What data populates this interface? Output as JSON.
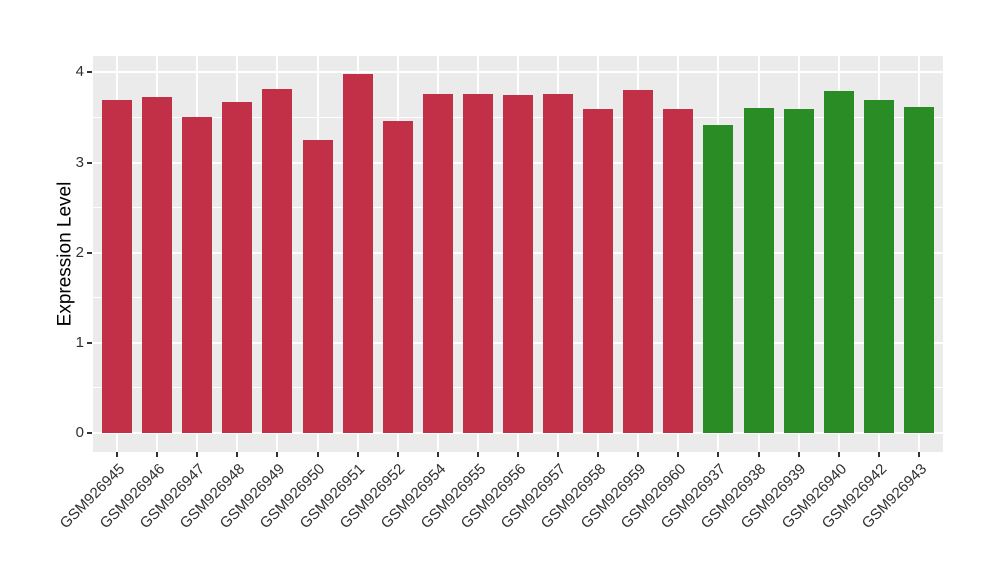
{
  "style": {
    "background": "#FFFFFF",
    "panel_background": "#EBEBEB",
    "gridline_color": "#FFFFFF",
    "tick_color": "#333333",
    "axis_text_color": "#303030",
    "axis_title_color": "#000000"
  },
  "chart_data": {
    "type": "bar",
    "title": "",
    "xlabel": "",
    "ylabel": "Expression Level",
    "ylim": [
      0,
      4
    ],
    "panel_range": [
      -0.211,
      4.183
    ],
    "yticks": [
      0,
      1,
      2,
      3,
      4
    ],
    "grid": {
      "horizontal_major": true,
      "horizontal_minor": true,
      "vertical_major": true
    },
    "legend_position": "none",
    "group_colors": {
      "red": "#C23048",
      "green": "#2A8C24"
    },
    "categories": [
      "GSM926945",
      "GSM926946",
      "GSM926947",
      "GSM926948",
      "GSM926949",
      "GSM926950",
      "GSM926951",
      "GSM926952",
      "GSM926954",
      "GSM926955",
      "GSM926956",
      "GSM926957",
      "GSM926958",
      "GSM926959",
      "GSM926960",
      "GSM926937",
      "GSM926938",
      "GSM926939",
      "GSM926940",
      "GSM926942",
      "GSM926943"
    ],
    "values": [
      3.7,
      3.73,
      3.51,
      3.67,
      3.82,
      3.25,
      3.98,
      3.46,
      3.76,
      3.76,
      3.75,
      3.76,
      3.6,
      3.81,
      3.59,
      3.42,
      3.61,
      3.59,
      3.8,
      3.69,
      3.62
    ],
    "groups": [
      "red",
      "red",
      "red",
      "red",
      "red",
      "red",
      "red",
      "red",
      "red",
      "red",
      "red",
      "red",
      "red",
      "red",
      "red",
      "green",
      "green",
      "green",
      "green",
      "green",
      "green"
    ]
  }
}
